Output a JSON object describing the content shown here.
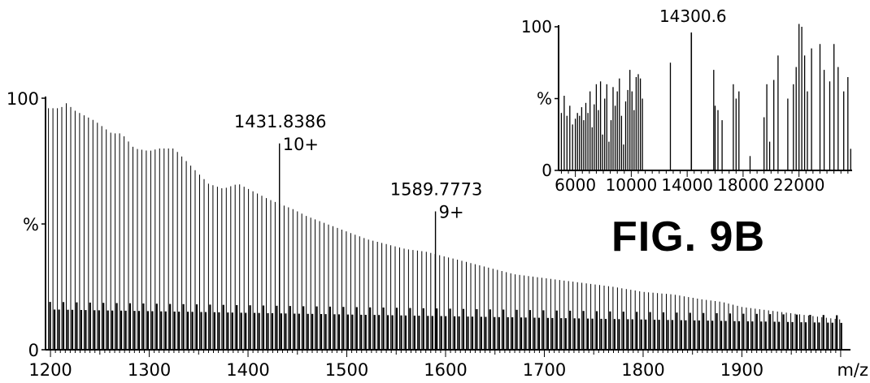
{
  "figure_label": "FIG. 9B",
  "chart_data": [
    {
      "type": "bar",
      "name": "main-spectrum",
      "xlabel": "m/z",
      "ylabel": "%",
      "xlim": [
        1195,
        2005
      ],
      "ylim": [
        0,
        100
      ],
      "x_ticks": [
        1200,
        1300,
        1400,
        1500,
        1600,
        1700,
        1800,
        1900
      ],
      "y_ticks": [
        {
          "value": 0,
          "label": "0"
        },
        {
          "value": 50,
          "label": "%"
        },
        {
          "value": 100,
          "label": "100"
        }
      ],
      "grid": false,
      "peak_spacing": 4.5,
      "envelope": [
        [
          1198,
          96
        ],
        [
          1210,
          96
        ],
        [
          1216,
          98
        ],
        [
          1225,
          95
        ],
        [
          1235,
          93
        ],
        [
          1245,
          91
        ],
        [
          1255,
          88
        ],
        [
          1262,
          86
        ],
        [
          1272,
          86
        ],
        [
          1285,
          80
        ],
        [
          1300,
          79
        ],
        [
          1310,
          80
        ],
        [
          1325,
          80
        ],
        [
          1340,
          74
        ],
        [
          1350,
          70
        ],
        [
          1360,
          66
        ],
        [
          1375,
          64
        ],
        [
          1390,
          66
        ],
        [
          1405,
          63
        ],
        [
          1420,
          60
        ],
        [
          1431.8,
          58
        ],
        [
          1445,
          56
        ],
        [
          1460,
          53
        ],
        [
          1480,
          50
        ],
        [
          1500,
          47
        ],
        [
          1520,
          44
        ],
        [
          1540,
          42
        ],
        [
          1560,
          40
        ],
        [
          1580,
          39
        ],
        [
          1589.8,
          38
        ],
        [
          1610,
          36
        ],
        [
          1630,
          34
        ],
        [
          1650,
          32
        ],
        [
          1670,
          30
        ],
        [
          1690,
          29
        ],
        [
          1710,
          28
        ],
        [
          1730,
          27
        ],
        [
          1750,
          26
        ],
        [
          1770,
          25
        ],
        [
          1800,
          23
        ],
        [
          1830,
          22
        ],
        [
          1860,
          20
        ],
        [
          1880,
          19
        ],
        [
          1900,
          17
        ],
        [
          1920,
          16
        ],
        [
          1940,
          15
        ],
        [
          1960,
          14
        ],
        [
          1980,
          13
        ],
        [
          2000,
          12
        ]
      ],
      "labeled_peaks": [
        {
          "x": 1431.8386,
          "y": 82,
          "label": "1431.8386",
          "charge": "10+"
        },
        {
          "x": 1589.7773,
          "y": 55,
          "label": "1589.7773",
          "charge": "9+"
        }
      ]
    },
    {
      "type": "bar",
      "name": "inset-deconvoluted",
      "xlabel": "",
      "ylabel": "%",
      "xlim": [
        4800,
        25800
      ],
      "ylim": [
        0,
        100
      ],
      "x_ticks": [
        6000,
        10000,
        14000,
        18000,
        22000
      ],
      "y_ticks": [
        {
          "value": 0,
          "label": "0"
        },
        {
          "value": 50,
          "label": "%"
        },
        {
          "value": 100,
          "label": "100"
        }
      ],
      "grid": false,
      "peaks": [
        [
          5000,
          40
        ],
        [
          5200,
          52
        ],
        [
          5400,
          38
        ],
        [
          5600,
          45
        ],
        [
          5800,
          32
        ],
        [
          6000,
          36
        ],
        [
          6150,
          40
        ],
        [
          6300,
          38
        ],
        [
          6450,
          44
        ],
        [
          6600,
          35
        ],
        [
          6750,
          47
        ],
        [
          6900,
          40
        ],
        [
          7050,
          55
        ],
        [
          7200,
          30
        ],
        [
          7350,
          46
        ],
        [
          7500,
          60
        ],
        [
          7650,
          42
        ],
        [
          7800,
          62
        ],
        [
          7950,
          25
        ],
        [
          8100,
          50
        ],
        [
          8250,
          60
        ],
        [
          8400,
          20
        ],
        [
          8550,
          35
        ],
        [
          8700,
          58
        ],
        [
          8850,
          45
        ],
        [
          9000,
          55
        ],
        [
          9150,
          64
        ],
        [
          9300,
          38
        ],
        [
          9450,
          18
        ],
        [
          9600,
          48
        ],
        [
          9750,
          56
        ],
        [
          9900,
          70
        ],
        [
          10050,
          55
        ],
        [
          10200,
          42
        ],
        [
          10350,
          65
        ],
        [
          10500,
          67
        ],
        [
          10650,
          64
        ],
        [
          10800,
          50
        ],
        [
          12800,
          75
        ],
        [
          14300,
          96
        ],
        [
          15900,
          70
        ],
        [
          16000,
          45
        ],
        [
          16200,
          42
        ],
        [
          16500,
          35
        ],
        [
          17300,
          60
        ],
        [
          17500,
          50
        ],
        [
          17700,
          55
        ],
        [
          18500,
          10
        ],
        [
          19500,
          37
        ],
        [
          19700,
          60
        ],
        [
          19900,
          20
        ],
        [
          20200,
          63
        ],
        [
          20500,
          80
        ],
        [
          21200,
          50
        ],
        [
          21600,
          60
        ],
        [
          21800,
          72
        ],
        [
          22000,
          102
        ],
        [
          22200,
          100
        ],
        [
          22400,
          80
        ],
        [
          22600,
          55
        ],
        [
          22900,
          85
        ],
        [
          23500,
          88
        ],
        [
          23800,
          70
        ],
        [
          24200,
          62
        ],
        [
          24500,
          88
        ],
        [
          24800,
          72
        ],
        [
          25200,
          55
        ],
        [
          25500,
          65
        ],
        [
          25700,
          15
        ]
      ],
      "labeled_peaks": [
        {
          "x": 14300.6,
          "y": 96,
          "label": "14300.6"
        }
      ]
    }
  ]
}
